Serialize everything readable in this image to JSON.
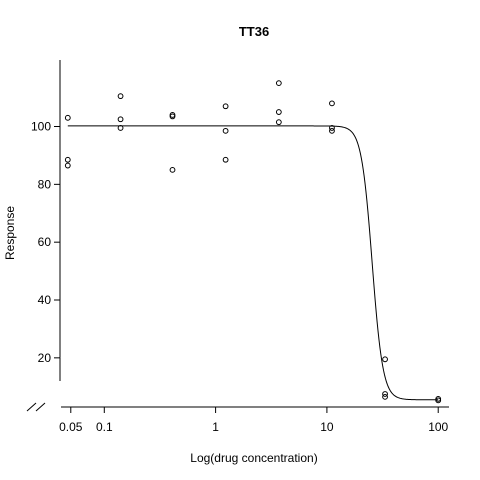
{
  "chart_data": {
    "type": "scatter",
    "title": "TT36",
    "xlabel": "Log(drug concentration)",
    "ylabel": "Response",
    "x_scale": "log",
    "xlim": [
      0.04,
      125
    ],
    "ylim": [
      3,
      123
    ],
    "x_ticks": [
      0.05,
      0.1,
      1,
      10,
      100
    ],
    "x_tick_labels": [
      "0.05",
      "0.1",
      "1",
      "10",
      "100"
    ],
    "y_ticks": [
      20,
      40,
      60,
      80,
      100
    ],
    "y_tick_labels": [
      "20",
      "40",
      "60",
      "80",
      "100"
    ],
    "grid": false,
    "axis_break": true,
    "points": [
      {
        "x": 0.047,
        "y": 103
      },
      {
        "x": 0.047,
        "y": 88.5
      },
      {
        "x": 0.047,
        "y": 86.5
      },
      {
        "x": 0.14,
        "y": 110.5
      },
      {
        "x": 0.14,
        "y": 102.5
      },
      {
        "x": 0.14,
        "y": 99.5
      },
      {
        "x": 0.41,
        "y": 104
      },
      {
        "x": 0.41,
        "y": 103.5
      },
      {
        "x": 0.41,
        "y": 85
      },
      {
        "x": 1.23,
        "y": 107
      },
      {
        "x": 1.23,
        "y": 98.5
      },
      {
        "x": 1.23,
        "y": 88.5
      },
      {
        "x": 3.7,
        "y": 115
      },
      {
        "x": 3.7,
        "y": 105
      },
      {
        "x": 3.7,
        "y": 101.5
      },
      {
        "x": 11.1,
        "y": 108
      },
      {
        "x": 11.1,
        "y": 99.5
      },
      {
        "x": 11.1,
        "y": 98.5
      },
      {
        "x": 33.3,
        "y": 19.5
      },
      {
        "x": 33.3,
        "y": 7.5
      },
      {
        "x": 33.3,
        "y": 6.5
      },
      {
        "x": 100,
        "y": 5.8
      },
      {
        "x": 100,
        "y": 5.3
      }
    ],
    "fit_curve": {
      "model": "log-logistic",
      "top": 100.2,
      "bottom": 5.5,
      "ec50": 25.5,
      "hill": 9,
      "x_range": [
        0.047,
        100
      ]
    }
  }
}
